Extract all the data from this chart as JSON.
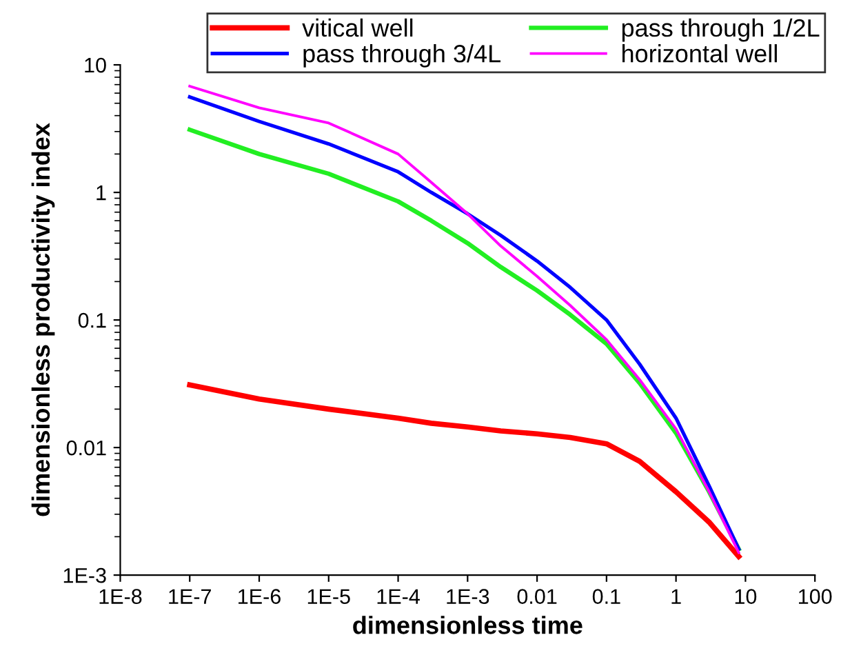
{
  "chart_data": {
    "type": "line",
    "xlabel": "dimensionless time",
    "ylabel": "dimensionless productivity index",
    "log": "xy",
    "legend": "top",
    "grid": false,
    "marker": "none",
    "line_style": "solid",
    "x": [
      1e-07,
      1e-06,
      1e-05,
      0.0001,
      0.0003,
      0.001,
      0.003,
      0.01,
      0.03,
      0.1,
      0.3,
      1,
      3,
      8
    ],
    "xlim": [
      1e-08,
      100
    ],
    "xticks": [
      {
        "value": 1e-08,
        "label": "1E-8"
      },
      {
        "value": 1e-07,
        "label": "1E-7"
      },
      {
        "value": 1e-06,
        "label": "1E-6"
      },
      {
        "value": 1e-05,
        "label": "1E-5"
      },
      {
        "value": 0.0001,
        "label": "1E-4"
      },
      {
        "value": 0.001,
        "label": "1E-3"
      },
      0.01,
      0.1,
      1,
      10,
      100
    ],
    "ylim": [
      0.001,
      10
    ],
    "yticks": [
      {
        "value": 0.001,
        "label": "1E-3"
      },
      0.01,
      0.1,
      1,
      10
    ],
    "series": [
      {
        "name": "vitical well",
        "color": "#ff0000",
        "values": [
          0.031,
          0.024,
          0.02,
          0.017,
          0.0155,
          0.0145,
          0.0135,
          0.0128,
          0.012,
          0.0107,
          0.0078,
          0.0045,
          0.0026,
          0.0014
        ]
      },
      {
        "name": "pass through 1/2L",
        "color": "#22ee22",
        "values": [
          3.1,
          2.0,
          1.4,
          0.85,
          0.6,
          0.4,
          0.26,
          0.17,
          0.11,
          0.065,
          0.032,
          0.013,
          0.0045,
          0.0016
        ]
      },
      {
        "name": "pass through 3/4L",
        "color": "#0000ff",
        "values": [
          5.6,
          3.6,
          2.4,
          1.45,
          1.0,
          0.68,
          0.46,
          0.29,
          0.18,
          0.1,
          0.045,
          0.017,
          0.005,
          0.0016
        ]
      },
      {
        "name": "horizontal well",
        "color": "#ff00ff",
        "values": [
          6.8,
          4.6,
          3.5,
          2.0,
          1.2,
          0.68,
          0.38,
          0.22,
          0.13,
          0.07,
          0.034,
          0.014,
          0.0045,
          0.0015
        ]
      }
    ]
  }
}
